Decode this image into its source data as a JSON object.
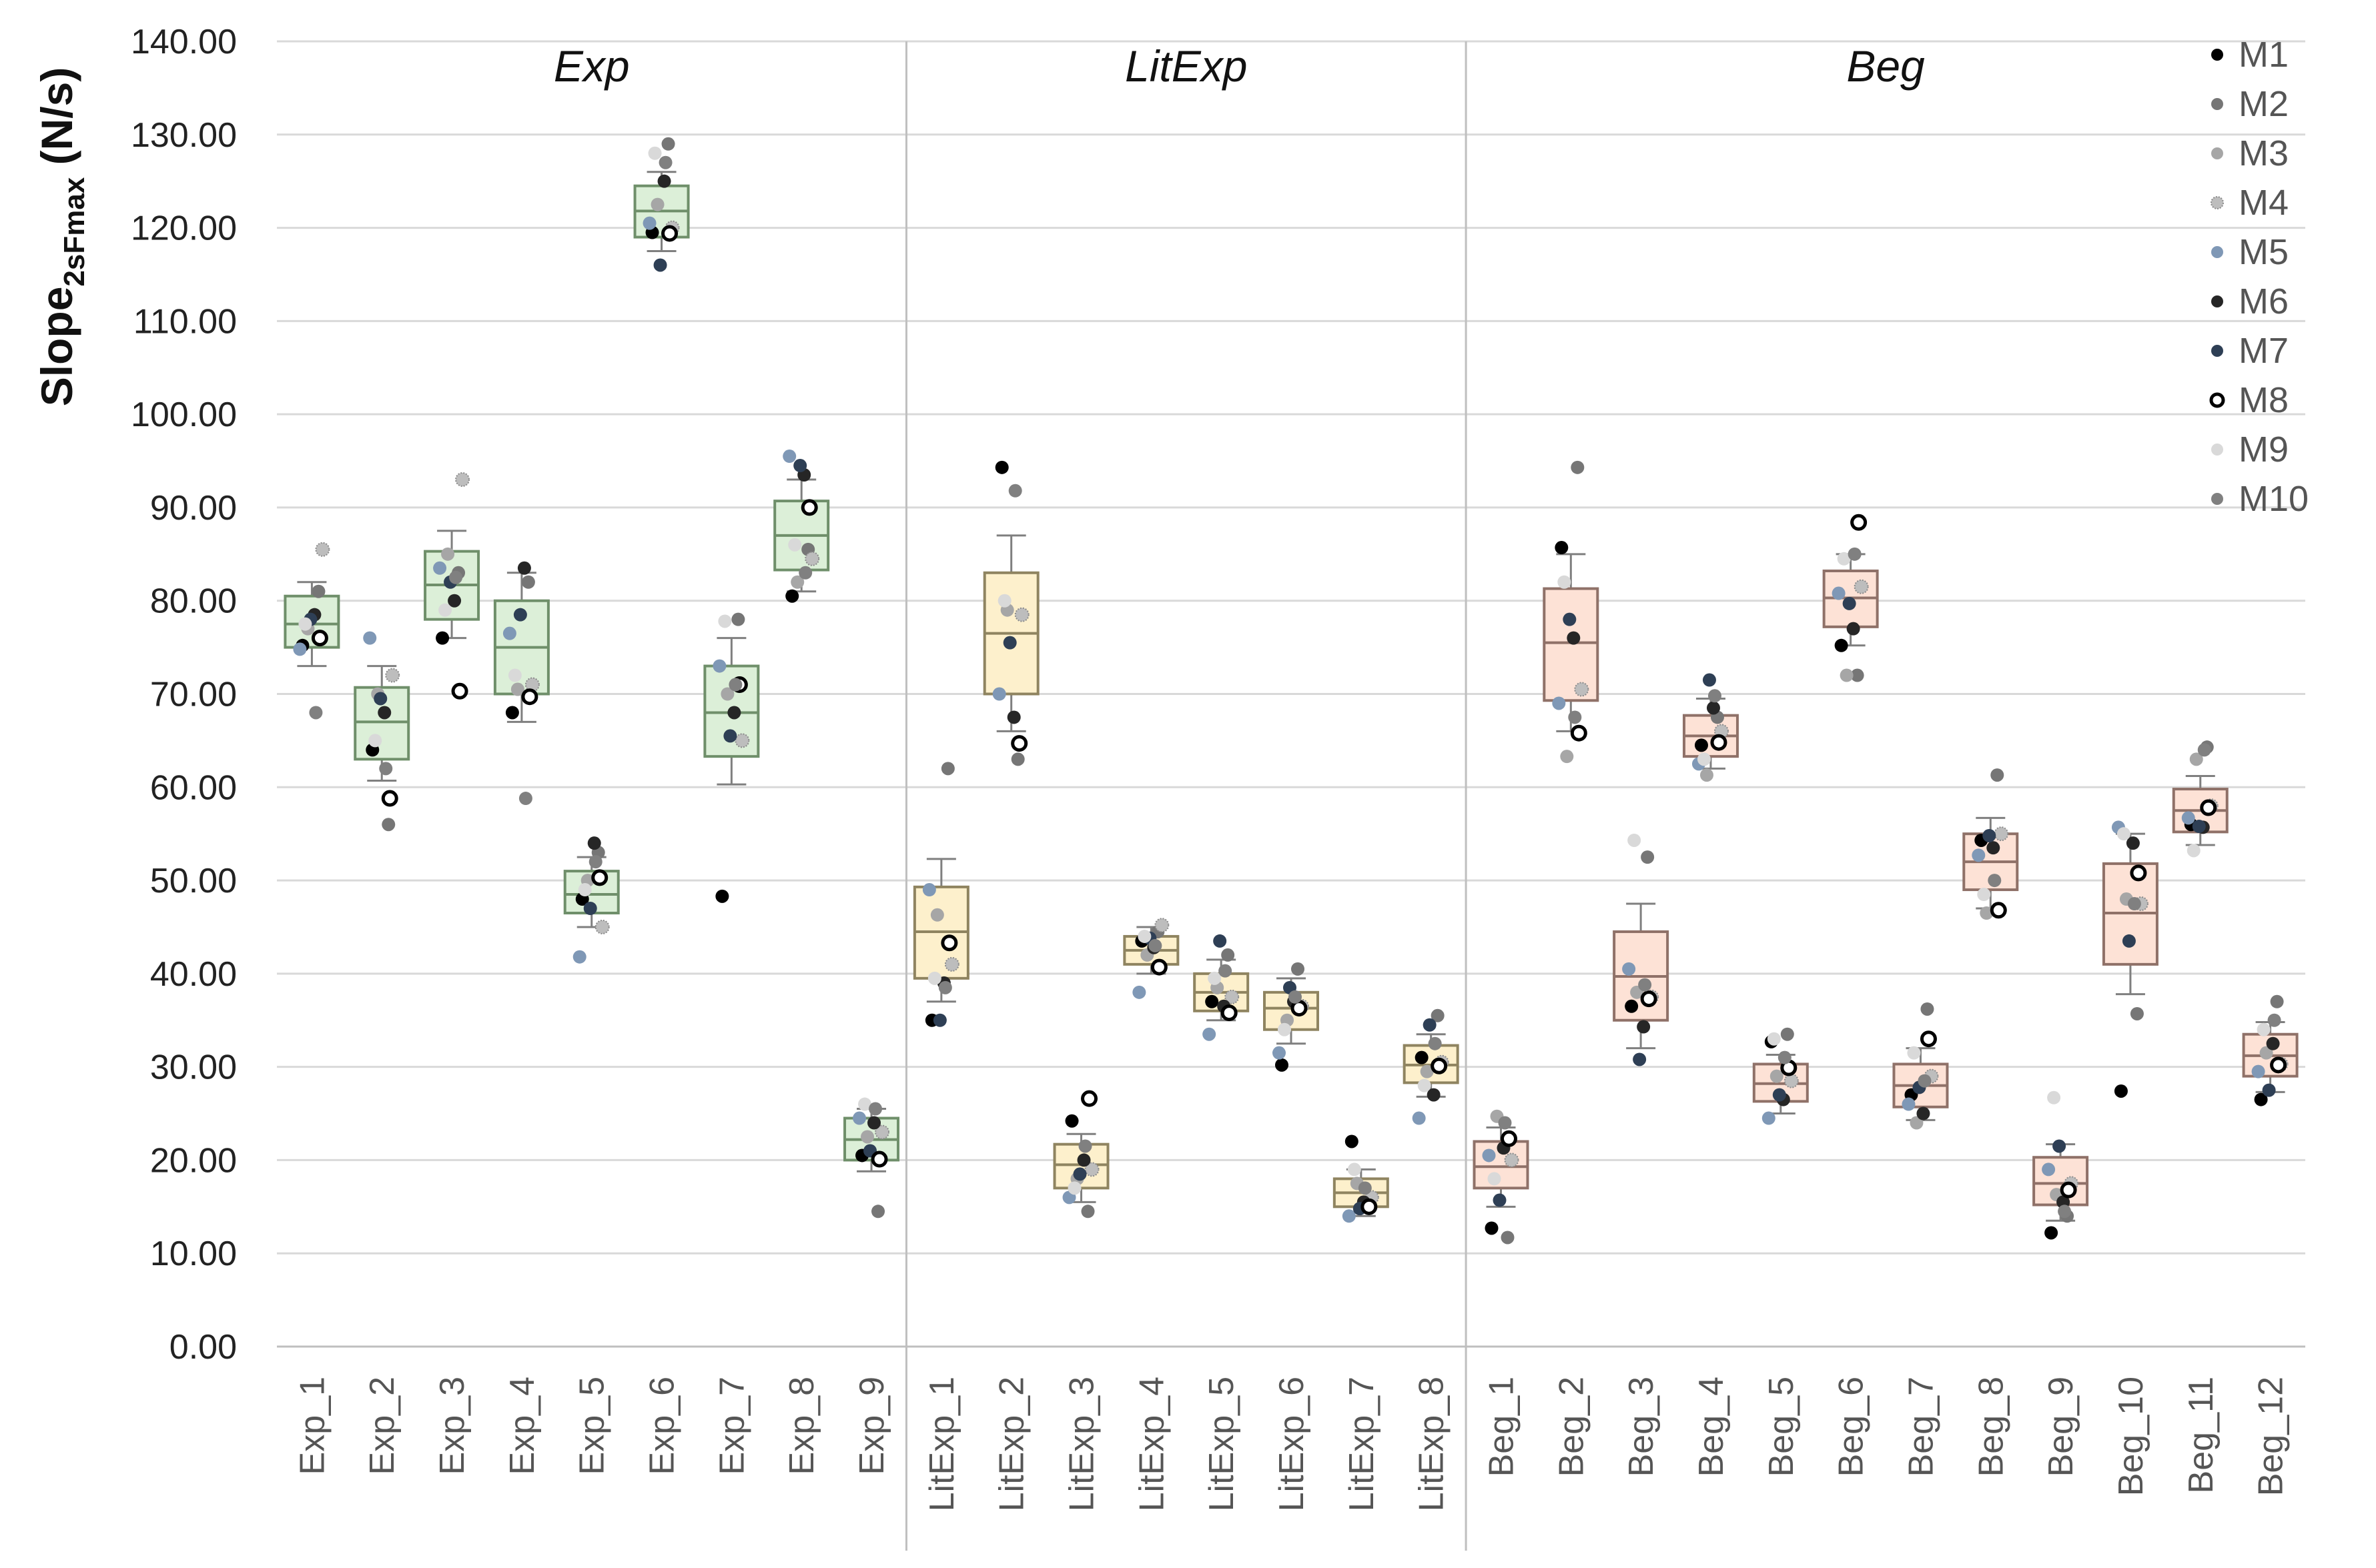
{
  "chart_data": {
    "type": "box",
    "ylabel_main": "Slope",
    "ylabel_sub": "2sFmax",
    "ylabel_unit": " (N/s)",
    "ylim": [
      0,
      140
    ],
    "y_ticks": [
      "0.00",
      "10.00",
      "20.00",
      "30.00",
      "40.00",
      "50.00",
      "60.00",
      "70.00",
      "80.00",
      "90.00",
      "100.00",
      "110.00",
      "120.00",
      "130.00",
      "140.00"
    ],
    "groups": [
      {
        "name": "Exp",
        "start": 0,
        "end": 9,
        "color": "#dcefd8",
        "stroke": "#6f8f6a"
      },
      {
        "name": "LitExp",
        "start": 9,
        "end": 17,
        "color": "#fdf0cc",
        "stroke": "#8f8460"
      },
      {
        "name": "Beg",
        "start": 17,
        "end": 29,
        "color": "#fde2d6",
        "stroke": "#8f7168"
      }
    ],
    "legend": [
      {
        "label": "M1",
        "color": "#000000",
        "style": "filled"
      },
      {
        "label": "M2",
        "color": "#767676",
        "style": "filled"
      },
      {
        "label": "M3",
        "color": "#a6a6a6",
        "style": "filled"
      },
      {
        "label": "M4",
        "color": "#bdbdbd",
        "style": "dotted"
      },
      {
        "label": "M5",
        "color": "#7f98b6",
        "style": "filled"
      },
      {
        "label": "M6",
        "color": "#262626",
        "style": "filled"
      },
      {
        "label": "M7",
        "color": "#2e3f55",
        "style": "filled"
      },
      {
        "label": "M8",
        "color": "#000000",
        "style": "hollow"
      },
      {
        "label": "M9",
        "color": "#d9d9d9",
        "style": "filled"
      },
      {
        "label": "M10",
        "color": "#808080",
        "style": "filled"
      }
    ],
    "boxes": [
      {
        "name": "Exp_1",
        "q1": 75,
        "median": 77.5,
        "q3": 80.5,
        "wlo": 73,
        "whi": 82,
        "points": [
          75.2,
          81,
          77,
          85.5,
          74.8,
          78.5,
          78,
          76,
          77.5,
          68
        ]
      },
      {
        "name": "Exp_2",
        "q1": 63,
        "median": 67,
        "q3": 70.7,
        "wlo": 60.7,
        "whi": 73,
        "points": [
          64,
          56,
          70,
          72,
          76,
          68,
          69.5,
          58.8,
          65,
          62
        ]
      },
      {
        "name": "Exp_3",
        "q1": 78,
        "median": 81.7,
        "q3": 85.3,
        "wlo": 76,
        "whi": 87.5,
        "points": [
          76,
          83,
          85,
          93,
          83.5,
          80,
          82,
          70.3,
          79,
          82.5
        ]
      },
      {
        "name": "Exp_4",
        "q1": 70,
        "median": 75,
        "q3": 80,
        "wlo": 67,
        "whi": 83,
        "points": [
          68,
          82,
          70.5,
          71,
          76.5,
          83.5,
          78.5,
          69.7,
          72,
          58.8
        ]
      },
      {
        "name": "Exp_5",
        "q1": 46.5,
        "median": 48.5,
        "q3": 51,
        "wlo": 45,
        "whi": 52.5,
        "points": [
          48,
          53,
          50,
          45,
          41.8,
          54,
          47,
          50.3,
          49,
          52
        ]
      },
      {
        "name": "Exp_6",
        "q1": 119,
        "median": 121.8,
        "q3": 124.5,
        "wlo": 117.5,
        "whi": 126,
        "points": [
          119.5,
          129,
          122.5,
          120,
          120.5,
          125,
          116,
          119.4,
          128,
          127
        ]
      },
      {
        "name": "Exp_7",
        "q1": 63.3,
        "median": 68,
        "q3": 73,
        "wlo": 60.3,
        "whi": 76,
        "points": [
          48.3,
          78,
          70,
          65,
          73,
          68,
          65.5,
          71,
          77.8,
          71
        ]
      },
      {
        "name": "Exp_8",
        "q1": 83.3,
        "median": 87,
        "q3": 90.7,
        "wlo": 81,
        "whi": 93,
        "points": [
          80.5,
          85.5,
          82,
          84.5,
          95.5,
          93.5,
          94.5,
          90,
          86,
          83
        ]
      },
      {
        "name": "Exp_9",
        "q1": 20,
        "median": 22.2,
        "q3": 24.5,
        "wlo": 18.8,
        "whi": 25.5,
        "points": [
          20.5,
          14.5,
          22.5,
          23,
          24.5,
          24,
          21,
          20.1,
          26,
          25.5
        ]
      },
      {
        "name": "LitExp_1",
        "q1": 39.5,
        "median": 44.5,
        "q3": 49.3,
        "wlo": 37,
        "whi": 52.3,
        "points": [
          35,
          62,
          46.3,
          41,
          49,
          39,
          35,
          43.3,
          39.5,
          38.5
        ]
      },
      {
        "name": "LitExp_2",
        "q1": 70,
        "median": 76.5,
        "q3": 83,
        "wlo": 66,
        "whi": 87,
        "points": [
          94.3,
          63,
          79,
          78.5,
          70,
          67.5,
          75.5,
          64.7,
          80,
          91.8
        ]
      },
      {
        "name": "LitExp_3",
        "q1": 17,
        "median": 19.5,
        "q3": 21.7,
        "wlo": 15.5,
        "whi": 22.8,
        "points": [
          24.2,
          14.5,
          18,
          19,
          16,
          20,
          18.5,
          26.6,
          17,
          21.5
        ]
      },
      {
        "name": "LitExp_4",
        "q1": 41,
        "median": 42.5,
        "q3": 44,
        "wlo": 40,
        "whi": 45,
        "points": [
          43.5,
          44.5,
          42,
          45.2,
          38,
          42.8,
          43.8,
          40.7,
          44,
          43
        ]
      },
      {
        "name": "LitExp_5",
        "q1": 36,
        "median": 38,
        "q3": 40,
        "wlo": 35,
        "whi": 41.5,
        "points": [
          37,
          42,
          38.5,
          37.5,
          33.5,
          36.5,
          43.5,
          35.8,
          39.5,
          40.3
        ]
      },
      {
        "name": "LitExp_6",
        "q1": 34,
        "median": 36.3,
        "q3": 38,
        "wlo": 32.5,
        "whi": 39.5,
        "points": [
          30.2,
          40.5,
          35,
          36.5,
          31.5,
          37,
          38.5,
          36.3,
          34,
          37.5
        ]
      },
      {
        "name": "LitExp_7",
        "q1": 15,
        "median": 16.5,
        "q3": 18,
        "wlo": 14,
        "whi": 19,
        "points": [
          22,
          15,
          17.5,
          16,
          14,
          15.5,
          14.8,
          15,
          19,
          17
        ]
      },
      {
        "name": "LitExp_8",
        "q1": 28.3,
        "median": 30.2,
        "q3": 32.3,
        "wlo": 26.8,
        "whi": 33.5,
        "points": [
          31,
          35.5,
          29.5,
          30.5,
          24.5,
          27,
          34.5,
          30.1,
          28,
          32.5
        ]
      },
      {
        "name": "Beg_1",
        "q1": 17,
        "median": 19.3,
        "q3": 22,
        "wlo": 15,
        "whi": 23.5,
        "points": [
          12.7,
          11.7,
          24.7,
          20,
          20.5,
          21.3,
          15.7,
          22.3,
          18,
          24
        ]
      },
      {
        "name": "Beg_2",
        "q1": 69.3,
        "median": 75.5,
        "q3": 81.3,
        "wlo": 66,
        "whi": 85,
        "points": [
          85.7,
          94.3,
          63.3,
          70.5,
          69,
          76,
          78,
          65.8,
          82,
          67.5
        ]
      },
      {
        "name": "Beg_3",
        "q1": 35,
        "median": 39.7,
        "q3": 44.5,
        "wlo": 32,
        "whi": 47.5,
        "points": [
          36.5,
          52.5,
          38,
          37.5,
          40.5,
          34.3,
          30.8,
          37.3,
          54.3,
          38.8
        ]
      },
      {
        "name": "Beg_4",
        "q1": 63.3,
        "median": 65.5,
        "q3": 67.7,
        "wlo": 62,
        "whi": 69.5,
        "points": [
          64.5,
          67.5,
          61.3,
          66,
          62.5,
          68.5,
          71.5,
          64.8,
          63,
          69.8
        ]
      },
      {
        "name": "Beg_5",
        "q1": 26.3,
        "median": 28.2,
        "q3": 30.3,
        "wlo": 25,
        "whi": 31.3,
        "points": [
          32.7,
          33.5,
          29,
          28.5,
          24.5,
          26.5,
          27,
          29.9,
          33,
          31
        ]
      },
      {
        "name": "Beg_6",
        "q1": 77.2,
        "median": 80.3,
        "q3": 83.2,
        "wlo": 75.2,
        "whi": 85,
        "points": [
          75.2,
          72,
          72,
          81.5,
          80.8,
          77,
          79.7,
          88.4,
          84.5,
          85
        ]
      },
      {
        "name": "Beg_7",
        "q1": 25.7,
        "median": 28,
        "q3": 30.3,
        "wlo": 24.3,
        "whi": 32,
        "points": [
          27,
          36.2,
          24,
          29,
          26,
          25,
          27.8,
          33,
          31.5,
          28.5
        ]
      },
      {
        "name": "Beg_8",
        "q1": 49,
        "median": 52,
        "q3": 55,
        "wlo": 47,
        "whi": 56.7,
        "points": [
          54.3,
          61.3,
          46.5,
          55,
          52.7,
          53.5,
          54.8,
          46.8,
          48.5,
          50
        ]
      },
      {
        "name": "Beg_9",
        "q1": 15.2,
        "median": 17.5,
        "q3": 20.3,
        "wlo": 13.5,
        "whi": 21.7,
        "points": [
          12.2,
          14,
          16.3,
          17.5,
          19,
          15.5,
          21.5,
          16.8,
          26.7,
          14.5
        ]
      },
      {
        "name": "Beg_10",
        "q1": 41,
        "median": 46.5,
        "q3": 51.8,
        "wlo": 37.8,
        "whi": 55,
        "points": [
          27.4,
          35.7,
          48,
          47.5,
          55.7,
          54,
          43.5,
          50.8,
          55,
          47.5
        ]
      },
      {
        "name": "Beg_11",
        "q1": 55.2,
        "median": 57.5,
        "q3": 59.8,
        "wlo": 53.8,
        "whi": 61.2,
        "points": [
          56,
          64.3,
          63,
          58,
          56.7,
          55.7,
          55.8,
          57.8,
          53.2,
          64
        ]
      },
      {
        "name": "Beg_12",
        "q1": 29,
        "median": 31.2,
        "q3": 33.5,
        "wlo": 27.3,
        "whi": 34.8,
        "points": [
          26.5,
          37,
          31.5,
          30.3,
          29.5,
          32.5,
          27.5,
          30.2,
          34,
          35
        ]
      }
    ]
  }
}
